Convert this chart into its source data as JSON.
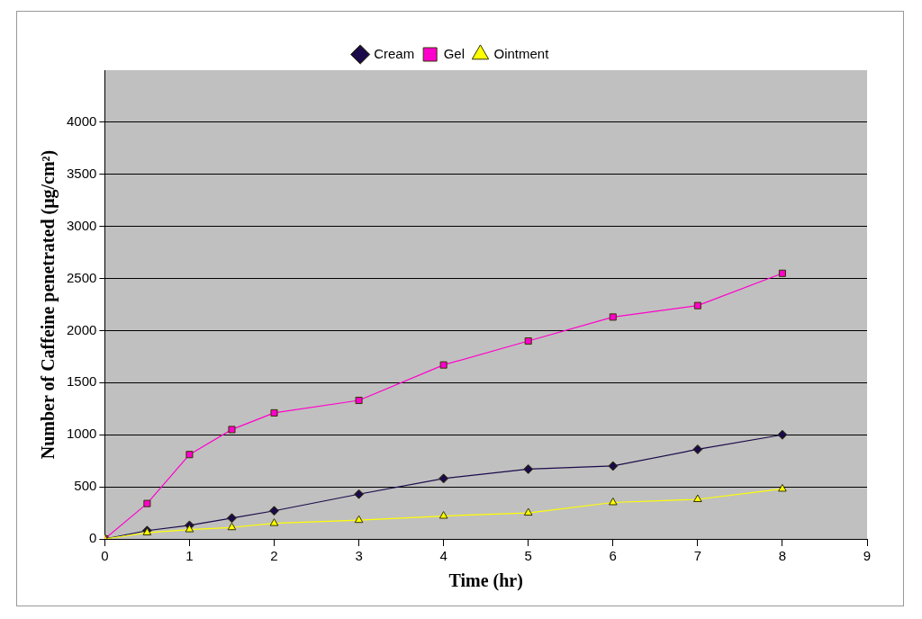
{
  "chart_data": {
    "type": "line",
    "xlabel": "Time (hr)",
    "ylabel": "Number of Caffeine penetrated (μg/cm²)",
    "x": [
      0,
      0.5,
      1,
      1.5,
      2,
      3,
      4,
      5,
      6,
      7,
      8
    ],
    "series": [
      {
        "name": "Cream",
        "color": "#1a0a4a",
        "marker": "diamond",
        "values": [
          0,
          80,
          130,
          200,
          270,
          430,
          580,
          670,
          700,
          860,
          1000
        ]
      },
      {
        "name": "Gel",
        "color": "#ff00cc",
        "marker": "square",
        "values": [
          0,
          340,
          810,
          1050,
          1210,
          1330,
          1670,
          1900,
          2130,
          2240,
          2550
        ]
      },
      {
        "name": "Ointment",
        "color": "#ffff00",
        "marker": "triangle",
        "values": [
          0,
          60,
          90,
          110,
          150,
          180,
          220,
          250,
          350,
          380,
          480
        ]
      }
    ],
    "xlim": [
      0,
      9
    ],
    "xticks": [
      0,
      1,
      2,
      3,
      4,
      5,
      6,
      7,
      8,
      9
    ],
    "ylim": [
      0,
      4500
    ],
    "yticks": [
      0,
      500,
      1000,
      1500,
      2000,
      2500,
      3000,
      3500,
      4000
    ],
    "grid": "y",
    "legend": "top",
    "line_style": "solid"
  }
}
